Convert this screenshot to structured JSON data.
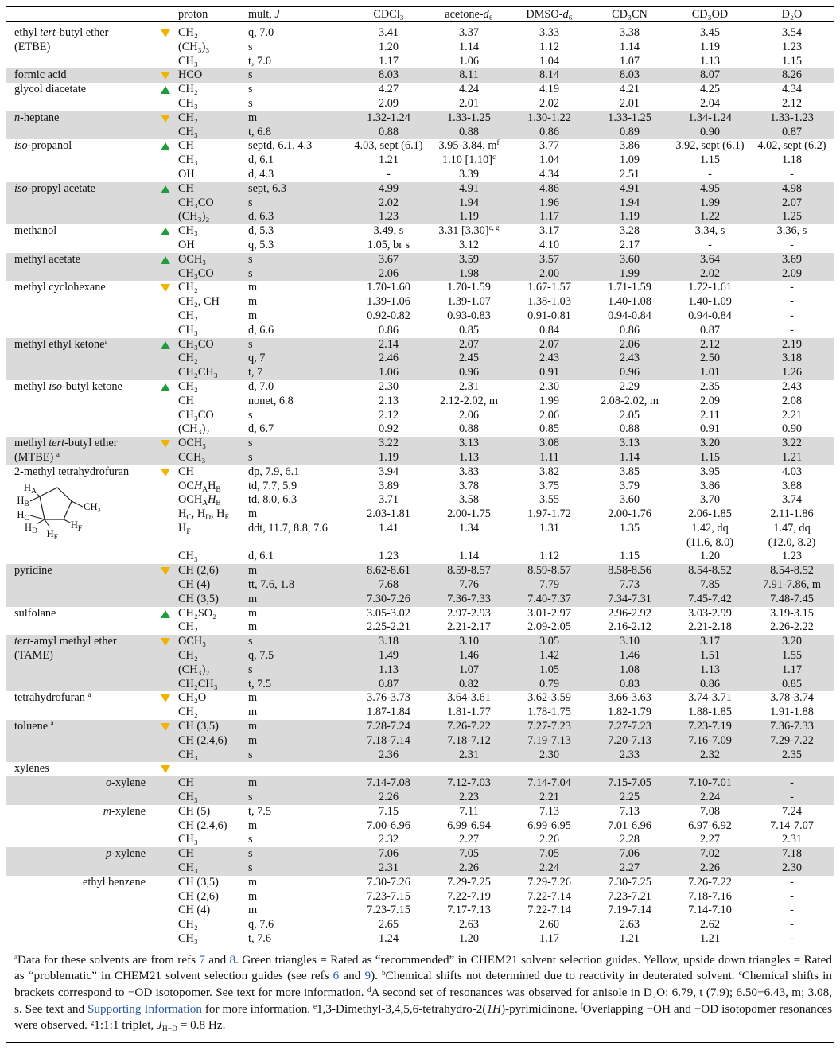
{
  "header": [
    "proton",
    [
      {
        "text": "mult, "
      },
      {
        "i": "J"
      }
    ],
    "CDCl₃",
    [
      {
        "text": "acetone-"
      },
      {
        "i": "d"
      },
      {
        "text": "₆"
      }
    ],
    [
      {
        "text": "DMSO-"
      },
      {
        "i": "d"
      },
      {
        "text": "₆"
      }
    ],
    "CD₃CN",
    "CD₃OD",
    "D₂O"
  ],
  "groups": [
    {
      "name": [
        {
          "text": "ethyl "
        },
        {
          "i": "tert"
        },
        {
          "text": "-butyl ether\n(ETBE)"
        }
      ],
      "rating": "down",
      "rows": [
        [
          "CH₂",
          "q, 7.0",
          "3.41",
          "3.37",
          "3.33",
          "3.38",
          "3.45",
          "3.54"
        ],
        [
          "(CH₃)₃",
          "s",
          "1.20",
          "1.14",
          "1.12",
          "1.14",
          "1.19",
          "1.23"
        ],
        [
          "CH₃",
          "t, 7.0",
          "1.17",
          "1.06",
          "1.04",
          "1.07",
          "1.13",
          "1.15"
        ]
      ]
    },
    {
      "name": "formic acid",
      "rating": "down",
      "shaded": true,
      "rows": [
        [
          "HCO",
          "s",
          "8.03",
          "8.11",
          "8.14",
          "8.03",
          "8.07",
          "8.26"
        ]
      ]
    },
    {
      "name": "glycol diacetate",
      "rating": "up",
      "rows": [
        [
          "CH₂",
          "s",
          "4.27",
          "4.24",
          "4.19",
          "4.21",
          "4.25",
          "4.34"
        ],
        [
          "CH₃",
          "s",
          "2.09",
          "2.01",
          "2.02",
          "2.01",
          "2.04",
          "2.12"
        ]
      ]
    },
    {
      "name": [
        {
          "i": "n"
        },
        {
          "text": "-heptane"
        }
      ],
      "rating": "down",
      "shaded": true,
      "rows": [
        [
          "CH₂",
          "m",
          "1.32-1.24",
          "1.33-1.25",
          "1.30-1.22",
          "1.33-1.25",
          "1.34-1.24",
          "1.33-1.23"
        ],
        [
          "CH₃",
          "t, 6.8",
          "0.88",
          "0.88",
          "0.86",
          "0.89",
          "0.90",
          "0.87"
        ]
      ]
    },
    {
      "name": [
        {
          "i": "iso"
        },
        {
          "text": "-propanol"
        }
      ],
      "rating": "up",
      "rows": [
        [
          "CH",
          "septd, 6.1, 4.3",
          "4.03, sept (6.1)",
          [
            {
              "text": "3.95-3.84, m"
            },
            {
              "sup": "f"
            }
          ],
          "3.77",
          "3.86",
          "3.92, sept (6.1)",
          "4.02, sept (6.2)"
        ],
        [
          "CH₃",
          "d, 6.1",
          "1.21",
          [
            {
              "text": "1.10 [1.10]"
            },
            {
              "sup": "c"
            }
          ],
          "1.04",
          "1.09",
          "1.15",
          "1.18"
        ],
        [
          "OH",
          "d, 4.3",
          "-",
          "3.39",
          "4.34",
          "2.51",
          "-",
          "-"
        ]
      ]
    },
    {
      "name": [
        {
          "i": "iso"
        },
        {
          "text": "-propyl acetate"
        }
      ],
      "rating": "up",
      "shaded": true,
      "rows": [
        [
          "CH",
          "sept, 6.3",
          "4.99",
          "4.91",
          "4.86",
          "4.91",
          "4.95",
          "4.98"
        ],
        [
          "CH₃CO",
          "s",
          "2.02",
          "1.94",
          "1.96",
          "1.94",
          "1.99",
          "2.07"
        ],
        [
          "(CH₃)₂",
          "d, 6.3",
          "1.23",
          "1.19",
          "1.17",
          "1.19",
          "1.22",
          "1.25"
        ]
      ]
    },
    {
      "name": "methanol",
      "rating": "up",
      "rows": [
        [
          "CH₃",
          "d, 5.3",
          "3.49, s",
          [
            {
              "text": "3.31 [3.30]"
            },
            {
              "sup": "c, g"
            }
          ],
          "3.17",
          "3.28",
          "3.34, s",
          "3.36, s"
        ],
        [
          "OH",
          "q, 5.3",
          "1.05, br s",
          "3.12",
          "4.10",
          "2.17",
          "-",
          "-"
        ]
      ]
    },
    {
      "name": "methyl acetate",
      "rating": "up",
      "shaded": true,
      "rows": [
        [
          "OCH₃",
          "s",
          "3.67",
          "3.59",
          "3.57",
          "3.60",
          "3.64",
          "3.69"
        ],
        [
          "CH₃CO",
          "s",
          "2.06",
          "1.98",
          "2.00",
          "1.99",
          "2.02",
          "2.09"
        ]
      ]
    },
    {
      "name": "methyl cyclohexane",
      "rating": "down",
      "rows": [
        [
          "CH₂",
          "m",
          "1.70-1.60",
          "1.70-1.59",
          "1.67-1.57",
          "1.71-1.59",
          "1.72-1.61",
          "-"
        ],
        [
          "CH₂, CH",
          "m",
          "1.39-1.06",
          "1.39-1.07",
          "1.38-1.03",
          "1.40-1.08",
          "1.40-1.09",
          "-"
        ],
        [
          "CH₂",
          "m",
          "0.92-0.82",
          "0.93-0.83",
          "0.91-0.81",
          "0.94-0.84",
          "0.94-0.84",
          "-"
        ],
        [
          "CH₃",
          "d, 6.6",
          "0.86",
          "0.85",
          "0.84",
          "0.86",
          "0.87",
          "-"
        ]
      ]
    },
    {
      "name": [
        {
          "text": "methyl ethyl ketone"
        },
        {
          "sup": "a"
        }
      ],
      "rating": "up",
      "shaded": true,
      "rows": [
        [
          "CH₃CO",
          "s",
          "2.14",
          "2.07",
          "2.07",
          "2.06",
          "2.12",
          "2.19"
        ],
        [
          "CH₂",
          "q, 7",
          "2.46",
          "2.45",
          "2.43",
          "2.43",
          "2.50",
          "3.18"
        ],
        [
          "CH₂CH₃",
          "t, 7",
          "1.06",
          "0.96",
          "0.91",
          "0.96",
          "1.01",
          "1.26"
        ]
      ]
    },
    {
      "name": [
        {
          "text": "methyl "
        },
        {
          "i": "iso"
        },
        {
          "text": "-butyl ketone"
        }
      ],
      "rating": "up",
      "rows": [
        [
          "CH₂",
          "d, 7.0",
          "2.30",
          "2.31",
          "2.30",
          "2.29",
          "2.35",
          "2.43"
        ],
        [
          "CH",
          "nonet, 6.8",
          "2.13",
          "2.12-2.02, m",
          "1.99",
          "2.08-2.02, m",
          "2.09",
          "2.08"
        ],
        [
          "CH₃CO",
          "s",
          "2.12",
          "2.06",
          "2.06",
          "2.05",
          "2.11",
          "2.21"
        ],
        [
          "(CH₃)₂",
          "d, 6.7",
          "0.92",
          "0.88",
          "0.85",
          "0.88",
          "0.91",
          "0.90"
        ]
      ]
    },
    {
      "name": [
        {
          "text": "methyl "
        },
        {
          "i": "tert"
        },
        {
          "text": "-butyl ether\n(MTBE) "
        },
        {
          "sup": "a"
        }
      ],
      "rating": "down",
      "shaded": true,
      "rows": [
        [
          "OCH₃",
          "s",
          "3.22",
          "3.13",
          "3.08",
          "3.13",
          "3.20",
          "3.22"
        ],
        [
          "CCH₃",
          "s",
          "1.19",
          "1.13",
          "1.11",
          "1.14",
          "1.15",
          "1.21"
        ]
      ]
    },
    {
      "name": "2-methyl tetrahydrofuran",
      "rating": "down",
      "structure": [
        [
          {
            "text": "H"
          },
          {
            "sub": "A"
          }
        ],
        [
          {
            "text": "H"
          },
          {
            "sub": "B"
          }
        ],
        [
          {
            "text": "H"
          },
          {
            "sub": "C"
          }
        ],
        [
          {
            "text": "H"
          },
          {
            "sub": "D"
          }
        ],
        [
          {
            "text": "H"
          },
          {
            "sub": "E"
          }
        ],
        [
          {
            "text": "H"
          },
          {
            "sub": "F"
          }
        ],
        "CH₃"
      ],
      "rows": [
        [
          "CH",
          "dp, 7.9, 6.1",
          "3.94",
          "3.83",
          "3.82",
          "3.85",
          "3.95",
          "4.03"
        ],
        [
          [
            {
              "text": "OC"
            },
            {
              "i": "H"
            },
            {
              "sub": "A"
            },
            {
              "text": "H"
            },
            {
              "sub": "B"
            }
          ],
          "td, 7.7, 5.9",
          "3.89",
          "3.78",
          "3.75",
          "3.79",
          "3.86",
          "3.88"
        ],
        [
          [
            {
              "text": "OCH"
            },
            {
              "sub": "A"
            },
            {
              "i": "H"
            },
            {
              "sub": "B"
            }
          ],
          "td, 8.0, 6.3",
          "3.71",
          "3.58",
          "3.55",
          "3.60",
          "3.70",
          "3.74"
        ],
        [
          [
            {
              "text": "H"
            },
            {
              "sub": "C"
            },
            {
              "text": ", H"
            },
            {
              "sub": "D"
            },
            {
              "text": ", H"
            },
            {
              "sub": "E"
            }
          ],
          "m",
          "2.03-1.81",
          "2.00-1.75",
          "1.97-1.72",
          "2.00-1.76",
          "2.06-1.85",
          "2.11-1.86"
        ],
        [
          [
            {
              "text": "H"
            },
            {
              "sub": "F"
            }
          ],
          "ddt, 11.7, 8.8, 7.6",
          "1.41",
          "1.34",
          "1.31",
          "1.35",
          "1.42, dq\n(11.6, 8.0)",
          "1.47, dq\n(12.0, 8.2)"
        ],
        [
          "CH₃",
          "d, 6.1",
          "1.23",
          "1.14",
          "1.12",
          "1.15",
          "1.20",
          "1.23"
        ]
      ]
    },
    {
      "name": "pyridine",
      "rating": "down",
      "shaded": true,
      "rows": [
        [
          "CH (2,6)",
          "m",
          "8.62-8.61",
          "8.59-8.57",
          "8.59-8.57",
          "8.58-8.56",
          "8.54-8.52",
          "8.54-8.52"
        ],
        [
          "CH (4)",
          "tt, 7.6, 1.8",
          "7.68",
          "7.76",
          "7.79",
          "7.73",
          "7.85",
          "7.91-7.86, m"
        ],
        [
          "CH (3,5)",
          "m",
          "7.30-7.26",
          "7.36-7.33",
          "7.40-7.37",
          "7.34-7.31",
          "7.45-7.42",
          "7.48-7.45"
        ]
      ]
    },
    {
      "name": "sulfolane",
      "rating": "up",
      "rows": [
        [
          "CH₂SO₂",
          "m",
          "3.05-3.02",
          "2.97-2.93",
          "3.01-2.97",
          "2.96-2.92",
          "3.03-2.99",
          "3.19-3.15"
        ],
        [
          "CH₂",
          "m",
          "2.25-2.21",
          "2.21-2.17",
          "2.09-2.05",
          "2.16-2.12",
          "2.21-2.18",
          "2.26-2.22"
        ]
      ]
    },
    {
      "name": [
        {
          "i": "tert"
        },
        {
          "text": "-amyl methyl ether\n(TAME)"
        }
      ],
      "rating": "down",
      "shaded": true,
      "rows": [
        [
          "OCH₃",
          "s",
          "3.18",
          "3.10",
          "3.05",
          "3.10",
          "3.17",
          "3.20"
        ],
        [
          "CH₂",
          "q, 7.5",
          "1.49",
          "1.46",
          "1.42",
          "1.46",
          "1.51",
          "1.55"
        ],
        [
          "(CH₃)₂",
          "s",
          "1.13",
          "1.07",
          "1.05",
          "1.08",
          "1.13",
          "1.17"
        ],
        [
          "CH₂CH₃",
          "t, 7.5",
          "0.87",
          "0.82",
          "0.79",
          "0.83",
          "0.86",
          "0.85"
        ]
      ]
    },
    {
      "name": [
        {
          "text": "tetrahydrofuran "
        },
        {
          "sup": "a"
        }
      ],
      "rating": "down",
      "rows": [
        [
          "CH₂O",
          "m",
          "3.76-3.73",
          "3.64-3.61",
          "3.62-3.59",
          "3.66-3.63",
          "3.74-3.71",
          "3.78-3.74"
        ],
        [
          "CH₂",
          "m",
          "1.87-1.84",
          "1.81-1.77",
          "1.78-1.75",
          "1.82-1.79",
          "1.88-1.85",
          "1.91-1.88"
        ]
      ]
    },
    {
      "name": [
        {
          "text": "toluene "
        },
        {
          "sup": "a"
        }
      ],
      "rating": "down",
      "shaded": true,
      "rows": [
        [
          "CH (3,5)",
          "m",
          "7.28-7.24",
          "7.26-7.22",
          "7.27-7.23",
          "7.27-7.23",
          "7.23-7.19",
          "7.36-7.33"
        ],
        [
          "CH (2,4,6)",
          "m",
          "7.18-7.14",
          "7.18-7.12",
          "7.19-7.13",
          "7.20-7.13",
          "7.16-7.09",
          "7.29-7.22"
        ],
        [
          "CH₃",
          "s",
          "2.36",
          "2.31",
          "2.30",
          "2.33",
          "2.32",
          "2.35"
        ]
      ]
    },
    {
      "name": "xylenes",
      "rating": "down",
      "rows": []
    },
    {
      "name": [
        {
          "i": "o"
        },
        {
          "text": "-xylene"
        }
      ],
      "sub": true,
      "shaded": true,
      "rows": [
        [
          "CH",
          "m",
          "7.14-7.08",
          "7.12-7.03",
          "7.14-7.04",
          "7.15-7.05",
          "7.10-7.01",
          "-"
        ],
        [
          "CH₃",
          "s",
          "2.26",
          "2.23",
          "2.21",
          "2.25",
          "2.24",
          "-"
        ]
      ]
    },
    {
      "name": [
        {
          "i": "m"
        },
        {
          "text": "-xylene"
        }
      ],
      "sub": true,
      "rows": [
        [
          "CH (5)",
          "t, 7.5",
          "7.15",
          "7.11",
          "7.13",
          "7.13",
          "7.08",
          "7.24"
        ],
        [
          "CH (2,4,6)",
          "m",
          "7.00-6.96",
          "6.99-6.94",
          "6.99-6.95",
          "7.01-6.96",
          "6.97-6.92",
          "7.14-7.07"
        ],
        [
          "CH₃",
          "s",
          "2.32",
          "2.27",
          "2.26",
          "2.28",
          "2.27",
          "2.31"
        ]
      ]
    },
    {
      "name": [
        {
          "i": "p"
        },
        {
          "text": "-xylene"
        }
      ],
      "sub": true,
      "shaded": true,
      "rows": [
        [
          "CH",
          "s",
          "7.06",
          "7.05",
          "7.05",
          "7.06",
          "7.02",
          "7.18"
        ],
        [
          "CH₃",
          "s",
          "2.31",
          "2.26",
          "2.24",
          "2.27",
          "2.26",
          "2.30"
        ]
      ]
    },
    {
      "name": "ethyl benzene",
      "sub": true,
      "rows": [
        [
          "CH (3,5)",
          "m",
          "7.30-7.26",
          "7.29-7.25",
          "7.29-7.26",
          "7.30-7.25",
          "7.26-7.22",
          "-"
        ],
        [
          "CH (2,6)",
          "m",
          "7.23-7.15",
          "7.22-7.19",
          "7.22-7.14",
          "7.23-7.21",
          "7.18-7.16",
          "-"
        ],
        [
          "CH (4)",
          "m",
          "7.23-7.15",
          "7.17-7.13",
          "7.22-7.14",
          "7.19-7.14",
          "7.14-7.10",
          "-"
        ],
        [
          "CH₂",
          "q, 7.6",
          "2.65",
          "2.63",
          "2.60",
          "2.63",
          "2.62",
          "-"
        ],
        [
          "CH₃",
          "t, 7.6",
          "1.24",
          "1.20",
          "1.17",
          "1.21",
          "1.21",
          "-"
        ]
      ]
    }
  ],
  "footnote": [
    {
      "sup": "a"
    },
    {
      "text": "Data for these solvents are from refs "
    },
    {
      "link": "7"
    },
    {
      "text": " and "
    },
    {
      "link": "8"
    },
    {
      "text": ". Green triangles = Rated as “recommended” in CHEM21 solvent selection guides. Yellow, upside down triangles = Rated as “problematic” in CHEM21 solvent selection guides (see refs "
    },
    {
      "link": "6"
    },
    {
      "text": " and "
    },
    {
      "link": "9"
    },
    {
      "text": "). "
    },
    {
      "sup": "b"
    },
    {
      "text": "Chemical shifts not determined due to reactivity in deuterated solvent. "
    },
    {
      "sup": "c"
    },
    {
      "text": "Chemical shifts in brackets correspond to −OD isotopomer. See text for more information. "
    },
    {
      "sup": "d"
    },
    {
      "text": "A second set of resonances was observed for anisole in D₂O: 6.79, t (7.9); 6.50−6.43, m; 3.08, s. See text and "
    },
    {
      "link": "Supporting Information"
    },
    {
      "text": " for more information. "
    },
    {
      "sup": "e"
    },
    {
      "text": "1,3-Dimethyl-3,4,5,6-tetrahydro-2("
    },
    {
      "i": "1H"
    },
    {
      "text": ")-pyrimidinone. "
    },
    {
      "sup": "f"
    },
    {
      "text": "Overlapping −OH and −OD isotopomer resonances were observed. "
    },
    {
      "sup": "g"
    },
    {
      "text": "1:1:1 triplet, "
    },
    {
      "i": "J"
    },
    {
      "sub": "H−D"
    },
    {
      "text": " = 0.8 Hz."
    }
  ]
}
